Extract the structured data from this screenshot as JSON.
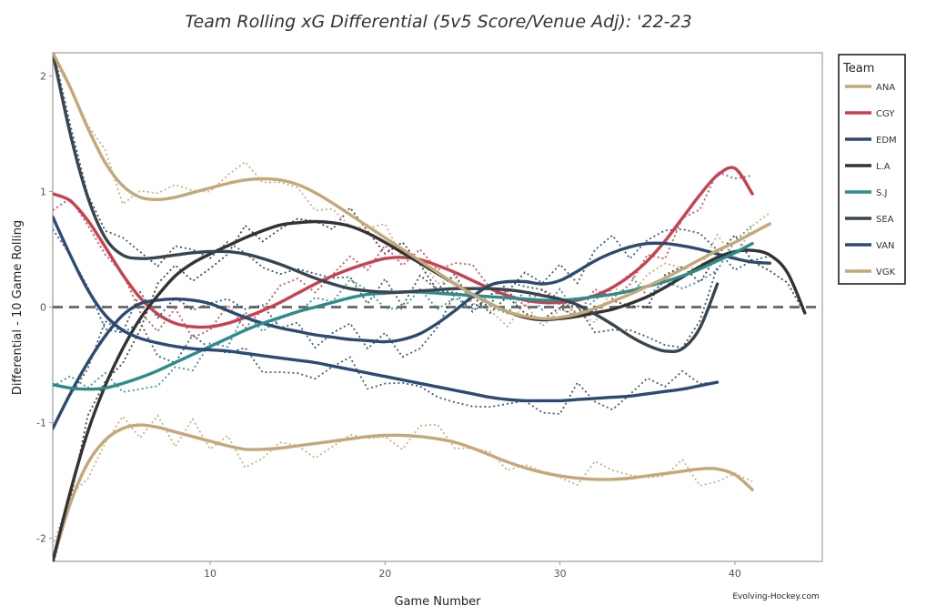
{
  "chart_data": {
    "type": "line",
    "title": "Team Rolling xG Differential (5v5 Score/Venue Adj): '22-23",
    "xlabel": "Game Number",
    "ylabel": "Differential - 10 Game Rolling",
    "xlim": [
      1,
      45
    ],
    "ylim": [
      -2.2,
      2.2
    ],
    "xticks": [
      10,
      20,
      30,
      40
    ],
    "yticks": [
      -2,
      -1,
      0,
      1,
      2
    ],
    "reference_line": 0,
    "grid": false,
    "legend_title": "Team",
    "legend_position": "right",
    "credit": "Evolving-Hockey.com",
    "series": [
      {
        "name": "ANA",
        "color": "#C4A87A",
        "x": [
          1,
          2,
          3,
          4,
          5,
          6,
          7,
          8,
          9,
          10,
          11,
          12,
          13,
          14,
          15,
          16,
          17,
          18,
          19,
          20,
          21,
          22,
          23,
          24,
          25,
          26,
          27,
          28,
          29,
          30,
          31,
          32,
          33,
          34,
          35,
          36,
          37,
          38,
          39,
          40,
          41
        ],
        "y": [
          -2.2,
          -1.7,
          -1.35,
          -1.15,
          -1.05,
          -1.02,
          -1.04,
          -1.08,
          -1.12,
          -1.16,
          -1.2,
          -1.23,
          -1.23,
          -1.22,
          -1.2,
          -1.18,
          -1.16,
          -1.14,
          -1.12,
          -1.11,
          -1.11,
          -1.12,
          -1.14,
          -1.17,
          -1.22,
          -1.28,
          -1.34,
          -1.39,
          -1.43,
          -1.46,
          -1.48,
          -1.49,
          -1.49,
          -1.48,
          -1.46,
          -1.44,
          -1.42,
          -1.4,
          -1.4,
          -1.45,
          -1.58
        ]
      },
      {
        "name": "CGY",
        "color": "#C8414F",
        "x": [
          1,
          2,
          3,
          4,
          5,
          6,
          7,
          8,
          9,
          10,
          11,
          12,
          13,
          14,
          15,
          16,
          17,
          18,
          19,
          20,
          21,
          22,
          23,
          24,
          25,
          26,
          27,
          28,
          29,
          30,
          31,
          32,
          33,
          34,
          35,
          36,
          37,
          38,
          39,
          40,
          41
        ],
        "y": [
          0.98,
          0.92,
          0.75,
          0.52,
          0.28,
          0.08,
          -0.06,
          -0.14,
          -0.17,
          -0.17,
          -0.14,
          -0.09,
          -0.03,
          0.04,
          0.12,
          0.2,
          0.27,
          0.33,
          0.38,
          0.42,
          0.43,
          0.41,
          0.36,
          0.3,
          0.23,
          0.16,
          0.1,
          0.06,
          0.04,
          0.04,
          0.06,
          0.1,
          0.17,
          0.27,
          0.4,
          0.57,
          0.77,
          0.97,
          1.14,
          1.2,
          0.98
        ]
      },
      {
        "name": "EDM",
        "color": "#2E4A6F",
        "x": [
          1,
          2,
          3,
          4,
          5,
          6,
          7,
          8,
          9,
          10,
          11,
          12,
          13,
          14,
          15,
          16,
          17,
          18,
          19,
          20,
          21,
          22,
          23,
          24,
          25,
          26,
          27,
          28,
          29,
          30,
          31,
          32,
          33,
          34,
          35,
          36,
          37,
          38,
          39,
          40,
          41,
          42
        ],
        "y": [
          -1.05,
          -0.75,
          -0.48,
          -0.25,
          -0.07,
          0.03,
          0.06,
          0.07,
          0.06,
          0.03,
          -0.03,
          -0.09,
          -0.14,
          -0.18,
          -0.21,
          -0.24,
          -0.26,
          -0.28,
          -0.29,
          -0.3,
          -0.28,
          -0.23,
          -0.14,
          -0.03,
          0.09,
          0.19,
          0.22,
          0.22,
          0.2,
          0.23,
          0.31,
          0.4,
          0.47,
          0.52,
          0.55,
          0.55,
          0.53,
          0.5,
          0.46,
          0.42,
          0.39,
          0.38
        ]
      },
      {
        "name": "L.A",
        "color": "#333333",
        "x": [
          1,
          2,
          3,
          4,
          5,
          6,
          7,
          8,
          9,
          10,
          11,
          12,
          13,
          14,
          15,
          16,
          17,
          18,
          19,
          20,
          21,
          22,
          23,
          24,
          25,
          26,
          27,
          28,
          29,
          30,
          31,
          32,
          33,
          34,
          35,
          36,
          37,
          38,
          39,
          40,
          41,
          42,
          43,
          44
        ],
        "y": [
          -2.2,
          -1.6,
          -1.08,
          -0.68,
          -0.36,
          -0.1,
          0.1,
          0.27,
          0.38,
          0.46,
          0.53,
          0.6,
          0.66,
          0.71,
          0.73,
          0.74,
          0.73,
          0.7,
          0.64,
          0.56,
          0.47,
          0.38,
          0.29,
          0.2,
          0.11,
          0.03,
          -0.04,
          -0.09,
          -0.11,
          -0.1,
          -0.08,
          -0.05,
          -0.02,
          0.03,
          0.09,
          0.17,
          0.26,
          0.35,
          0.43,
          0.48,
          0.49,
          0.45,
          0.3,
          -0.05
        ]
      },
      {
        "name": "S.J",
        "color": "#2E8B8B",
        "x": [
          1,
          2,
          3,
          4,
          5,
          6,
          7,
          8,
          9,
          10,
          11,
          12,
          13,
          14,
          15,
          16,
          17,
          18,
          19,
          20,
          21,
          22,
          23,
          24,
          25,
          26,
          27,
          28,
          29,
          30,
          31,
          32,
          33,
          34,
          35,
          36,
          37,
          38,
          39,
          40,
          41
        ],
        "y": [
          -0.67,
          -0.7,
          -0.71,
          -0.7,
          -0.66,
          -0.61,
          -0.55,
          -0.48,
          -0.41,
          -0.34,
          -0.27,
          -0.2,
          -0.14,
          -0.09,
          -0.04,
          0.0,
          0.04,
          0.08,
          0.11,
          0.12,
          0.13,
          0.13,
          0.12,
          0.11,
          0.1,
          0.09,
          0.08,
          0.07,
          0.06,
          0.06,
          0.07,
          0.09,
          0.11,
          0.14,
          0.18,
          0.22,
          0.27,
          0.33,
          0.4,
          0.47,
          0.55
        ]
      },
      {
        "name": "SEA",
        "color": "#36454F",
        "x": [
          1,
          2,
          3,
          4,
          5,
          6,
          7,
          8,
          9,
          10,
          11,
          12,
          13,
          14,
          15,
          16,
          17,
          18,
          19,
          20,
          21,
          22,
          23,
          24,
          25,
          26,
          27,
          28,
          29,
          30,
          31,
          32,
          33,
          34,
          35,
          36,
          37,
          38,
          39
        ],
        "y": [
          2.2,
          1.5,
          0.95,
          0.6,
          0.45,
          0.42,
          0.43,
          0.45,
          0.47,
          0.48,
          0.48,
          0.46,
          0.42,
          0.37,
          0.31,
          0.25,
          0.2,
          0.16,
          0.14,
          0.13,
          0.13,
          0.14,
          0.15,
          0.16,
          0.16,
          0.16,
          0.15,
          0.13,
          0.1,
          0.07,
          0.02,
          -0.06,
          -0.15,
          -0.25,
          -0.33,
          -0.38,
          -0.36,
          -0.18,
          0.2
        ]
      },
      {
        "name": "VAN",
        "color": "#2D4A77",
        "x": [
          1,
          2,
          3,
          4,
          5,
          6,
          7,
          8,
          9,
          10,
          11,
          12,
          13,
          14,
          15,
          16,
          17,
          18,
          19,
          20,
          21,
          22,
          23,
          24,
          25,
          26,
          27,
          28,
          29,
          30,
          31,
          32,
          33,
          34,
          35,
          36,
          37,
          38,
          39
        ],
        "y": [
          0.78,
          0.45,
          0.15,
          -0.07,
          -0.2,
          -0.27,
          -0.31,
          -0.34,
          -0.36,
          -0.37,
          -0.38,
          -0.4,
          -0.42,
          -0.44,
          -0.46,
          -0.48,
          -0.51,
          -0.54,
          -0.57,
          -0.6,
          -0.63,
          -0.66,
          -0.69,
          -0.72,
          -0.75,
          -0.78,
          -0.8,
          -0.81,
          -0.81,
          -0.81,
          -0.8,
          -0.79,
          -0.78,
          -0.77,
          -0.75,
          -0.73,
          -0.71,
          -0.68,
          -0.65
        ]
      },
      {
        "name": "VGK",
        "color": "#C4A87A",
        "x": [
          1,
          2,
          3,
          4,
          5,
          6,
          7,
          8,
          9,
          10,
          11,
          12,
          13,
          14,
          15,
          16,
          17,
          18,
          19,
          20,
          21,
          22,
          23,
          24,
          25,
          26,
          27,
          28,
          29,
          30,
          31,
          32,
          33,
          34,
          35,
          36,
          37,
          38,
          39,
          40,
          41,
          42
        ],
        "y": [
          2.2,
          1.9,
          1.55,
          1.25,
          1.05,
          0.95,
          0.93,
          0.95,
          0.99,
          1.03,
          1.07,
          1.1,
          1.11,
          1.1,
          1.06,
          0.99,
          0.9,
          0.8,
          0.7,
          0.6,
          0.5,
          0.4,
          0.3,
          0.2,
          0.11,
          0.03,
          -0.04,
          -0.08,
          -0.1,
          -0.09,
          -0.06,
          -0.01,
          0.05,
          0.11,
          0.18,
          0.25,
          0.33,
          0.41,
          0.49,
          0.56,
          0.64,
          0.72
        ]
      }
    ]
  }
}
